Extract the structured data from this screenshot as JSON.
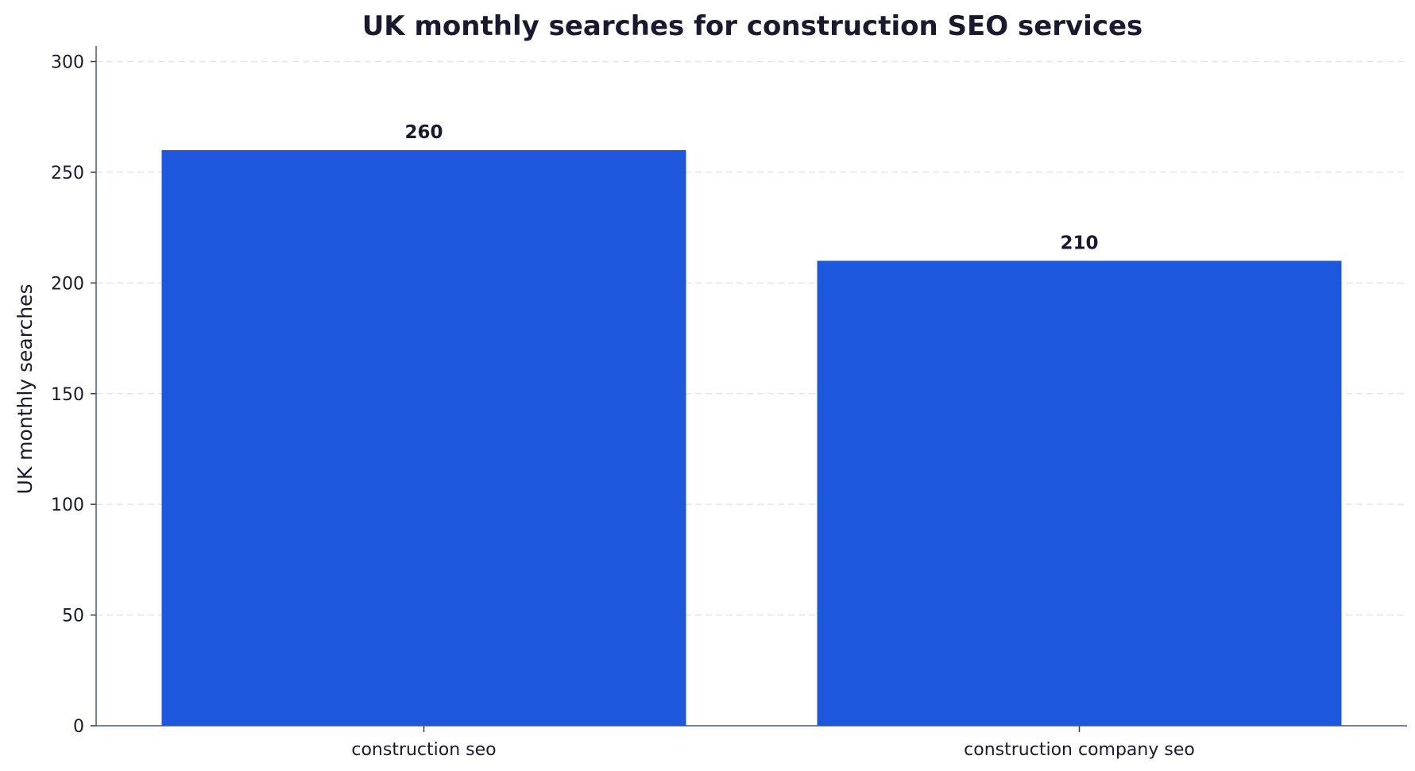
{
  "chart_data": {
    "type": "bar",
    "title": "UK monthly searches for construction SEO services",
    "xlabel": "",
    "ylabel": "UK monthly searches",
    "categories": [
      "construction seo",
      "construction company seo"
    ],
    "values": [
      260,
      210
    ],
    "data_labels": [
      "260",
      "210"
    ],
    "ylim": [
      0,
      307
    ],
    "yticks": [
      0,
      50,
      100,
      150,
      200,
      250,
      300
    ],
    "grid": "y-dashed",
    "bar_color": "#1c57dc",
    "legend": "none"
  }
}
